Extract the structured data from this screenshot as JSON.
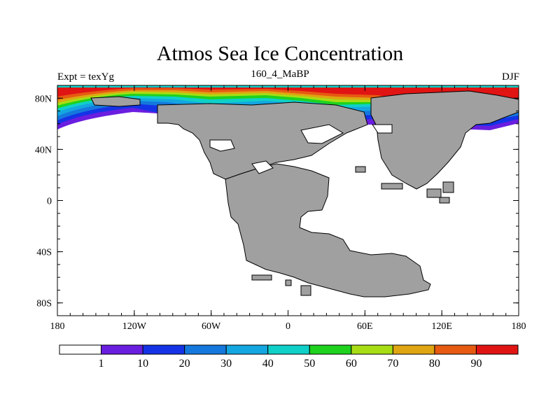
{
  "title": "Atmos Sea Ice Concentration",
  "subtitle_left": "Expt = texYg",
  "subtitle_center": "160_4_MaBP",
  "subtitle_right": "DJF",
  "x_ticks": [
    {
      "value": -180,
      "label": "180"
    },
    {
      "value": -120,
      "label": "120W"
    },
    {
      "value": -60,
      "label": "60W"
    },
    {
      "value": 0,
      "label": "0"
    },
    {
      "value": 60,
      "label": "60E"
    },
    {
      "value": 120,
      "label": "120E"
    },
    {
      "value": 180,
      "label": "180"
    }
  ],
  "y_ticks": [
    {
      "value": 80,
      "label": "80N"
    },
    {
      "value": 40,
      "label": "40N"
    },
    {
      "value": 0,
      "label": "0"
    },
    {
      "value": -40,
      "label": "40S"
    },
    {
      "value": -80,
      "label": "80S"
    }
  ],
  "colorbar": {
    "colors": [
      "#ffffff",
      "#6a1ee0",
      "#1433e6",
      "#1478dc",
      "#14a6e0",
      "#0fd0c8",
      "#1ed21e",
      "#a8dc14",
      "#dfa512",
      "#e65a12",
      "#e11414"
    ],
    "labels": [
      "1",
      "10",
      "20",
      "30",
      "40",
      "50",
      "60",
      "70",
      "80",
      "90"
    ]
  },
  "colors": {
    "land": "#a0a0a0",
    "ocean": "#ffffff"
  }
}
